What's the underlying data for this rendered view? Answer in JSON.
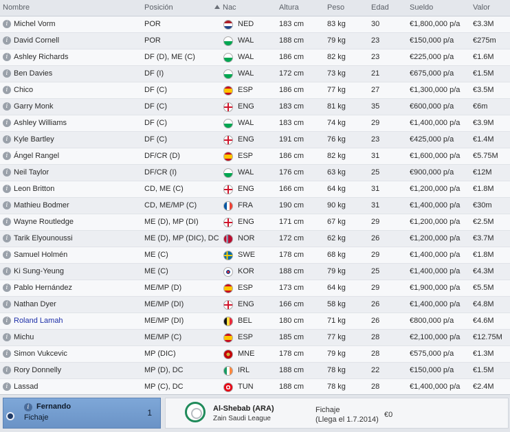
{
  "columns": {
    "name": "Nombre",
    "position": "Posición",
    "nationality": "Nac",
    "height": "Altura",
    "weight": "Peso",
    "age": "Edad",
    "wage": "Sueldo",
    "value": "Valor"
  },
  "info_glyph": "i",
  "players": [
    {
      "name": "Michel Vorm",
      "position": "POR",
      "flag": "NED",
      "nat": "NED",
      "height": "183 cm",
      "weight": "83 kg",
      "age": "30",
      "wage": "€1,800,000 p/a",
      "value": "€3.3M"
    },
    {
      "name": "David Cornell",
      "position": "POR",
      "flag": "WAL",
      "nat": "WAL",
      "height": "188 cm",
      "weight": "79 kg",
      "age": "23",
      "wage": "€150,000 p/a",
      "value": "€275m"
    },
    {
      "name": "Ashley Richards",
      "position": "DF (D), ME (C)",
      "flag": "WAL",
      "nat": "WAL",
      "height": "186 cm",
      "weight": "82 kg",
      "age": "23",
      "wage": "€225,000 p/a",
      "value": "€1.6M"
    },
    {
      "name": "Ben Davies",
      "position": "DF (I)",
      "flag": "WAL",
      "nat": "WAL",
      "height": "172 cm",
      "weight": "73 kg",
      "age": "21",
      "wage": "€675,000 p/a",
      "value": "€1.5M"
    },
    {
      "name": "Chico",
      "position": "DF (C)",
      "flag": "ESP",
      "nat": "ESP",
      "height": "186 cm",
      "weight": "77 kg",
      "age": "27",
      "wage": "€1,300,000 p/a",
      "value": "€3.5M"
    },
    {
      "name": "Garry Monk",
      "position": "DF (C)",
      "flag": "ENG",
      "nat": "ENG",
      "height": "183 cm",
      "weight": "81 kg",
      "age": "35",
      "wage": "€600,000 p/a",
      "value": "€6m"
    },
    {
      "name": "Ashley Williams",
      "position": "DF (C)",
      "flag": "WAL",
      "nat": "WAL",
      "height": "183 cm",
      "weight": "74 kg",
      "age": "29",
      "wage": "€1,400,000 p/a",
      "value": "€3.9M"
    },
    {
      "name": "Kyle Bartley",
      "position": "DF (C)",
      "flag": "ENG",
      "nat": "ENG",
      "height": "191 cm",
      "weight": "76 kg",
      "age": "23",
      "wage": "€425,000 p/a",
      "value": "€1.4M"
    },
    {
      "name": "Ángel Rangel",
      "position": "DF/CR (D)",
      "flag": "ESP",
      "nat": "ESP",
      "height": "186 cm",
      "weight": "82 kg",
      "age": "31",
      "wage": "€1,600,000 p/a",
      "value": "€5.75M"
    },
    {
      "name": "Neil Taylor",
      "position": "DF/CR (I)",
      "flag": "WAL",
      "nat": "WAL",
      "height": "176 cm",
      "weight": "63 kg",
      "age": "25",
      "wage": "€900,000 p/a",
      "value": "€12M"
    },
    {
      "name": "Leon Britton",
      "position": "CD, ME (C)",
      "flag": "ENG",
      "nat": "ENG",
      "height": "166 cm",
      "weight": "64 kg",
      "age": "31",
      "wage": "€1,200,000 p/a",
      "value": "€1.8M"
    },
    {
      "name": "Mathieu Bodmer",
      "position": "CD, ME/MP (C)",
      "flag": "FRA",
      "nat": "FRA",
      "height": "190 cm",
      "weight": "90 kg",
      "age": "31",
      "wage": "€1,400,000 p/a",
      "value": "€30m"
    },
    {
      "name": "Wayne Routledge",
      "position": "ME (D), MP (DI)",
      "flag": "ENG",
      "nat": "ENG",
      "height": "171 cm",
      "weight": "67 kg",
      "age": "29",
      "wage": "€1,200,000 p/a",
      "value": "€2.5M"
    },
    {
      "name": "Tarik Elyounoussi",
      "position": "ME (D), MP (DIC), DC",
      "flag": "NOR",
      "nat": "NOR",
      "height": "172 cm",
      "weight": "62 kg",
      "age": "26",
      "wage": "€1,200,000 p/a",
      "value": "€3.7M"
    },
    {
      "name": "Samuel Holmén",
      "position": "ME (C)",
      "flag": "SWE",
      "nat": "SWE",
      "height": "178 cm",
      "weight": "68 kg",
      "age": "29",
      "wage": "€1,400,000 p/a",
      "value": "€1.8M"
    },
    {
      "name": "Ki Sung-Yeung",
      "position": "ME (C)",
      "flag": "KOR",
      "nat": "KOR",
      "height": "188 cm",
      "weight": "79 kg",
      "age": "25",
      "wage": "€1,400,000 p/a",
      "value": "€4.3M"
    },
    {
      "name": "Pablo Hernández",
      "position": "ME/MP (D)",
      "flag": "ESP",
      "nat": "ESP",
      "height": "173 cm",
      "weight": "64 kg",
      "age": "29",
      "wage": "€1,900,000 p/a",
      "value": "€5.5M"
    },
    {
      "name": "Nathan Dyer",
      "position": "ME/MP (DI)",
      "flag": "ENG",
      "nat": "ENG",
      "height": "166 cm",
      "weight": "58 kg",
      "age": "26",
      "wage": "€1,400,000 p/a",
      "value": "€4.8M"
    },
    {
      "name": "Roland Lamah",
      "position": "ME/MP (DI)",
      "flag": "BEL",
      "nat": "BEL",
      "height": "180 cm",
      "weight": "71 kg",
      "age": "26",
      "wage": "€800,000 p/a",
      "value": "€4.6M",
      "highlight": true
    },
    {
      "name": "Michu",
      "position": "ME/MP (C)",
      "flag": "ESP",
      "nat": "ESP",
      "height": "185 cm",
      "weight": "77 kg",
      "age": "28",
      "wage": "€2,100,000 p/a",
      "value": "€12.75M"
    },
    {
      "name": "Simon Vukcevic",
      "position": "MP (DIC)",
      "flag": "MNE",
      "nat": "MNE",
      "height": "178 cm",
      "weight": "79 kg",
      "age": "28",
      "wage": "€575,000 p/a",
      "value": "€1.3M"
    },
    {
      "name": "Rory Donnelly",
      "position": "MP (D), DC",
      "flag": "IRL",
      "nat": "IRL",
      "height": "188 cm",
      "weight": "78 kg",
      "age": "22",
      "wage": "€150,000 p/a",
      "value": "€1.5M"
    },
    {
      "name": "Lassad",
      "position": "MP (C), DC",
      "flag": "TUN",
      "nat": "TUN",
      "height": "188 cm",
      "weight": "78 kg",
      "age": "28",
      "wage": "€1,400,000 p/a",
      "value": "€2.4M"
    }
  ],
  "selected": {
    "name": "Fernando",
    "status": "Fichaje",
    "number": "1"
  },
  "transfer": {
    "club": "Al-Shebab (ARA)",
    "league": "Zain Saudi League",
    "type": "Fichaje",
    "date": "(Llega el 1.7.2014)",
    "fee": "€0"
  },
  "colors": {
    "link_name": "#1d2fa8",
    "selected_bg": "#7ea7d8",
    "crest_ring": "#1f8a5a"
  }
}
